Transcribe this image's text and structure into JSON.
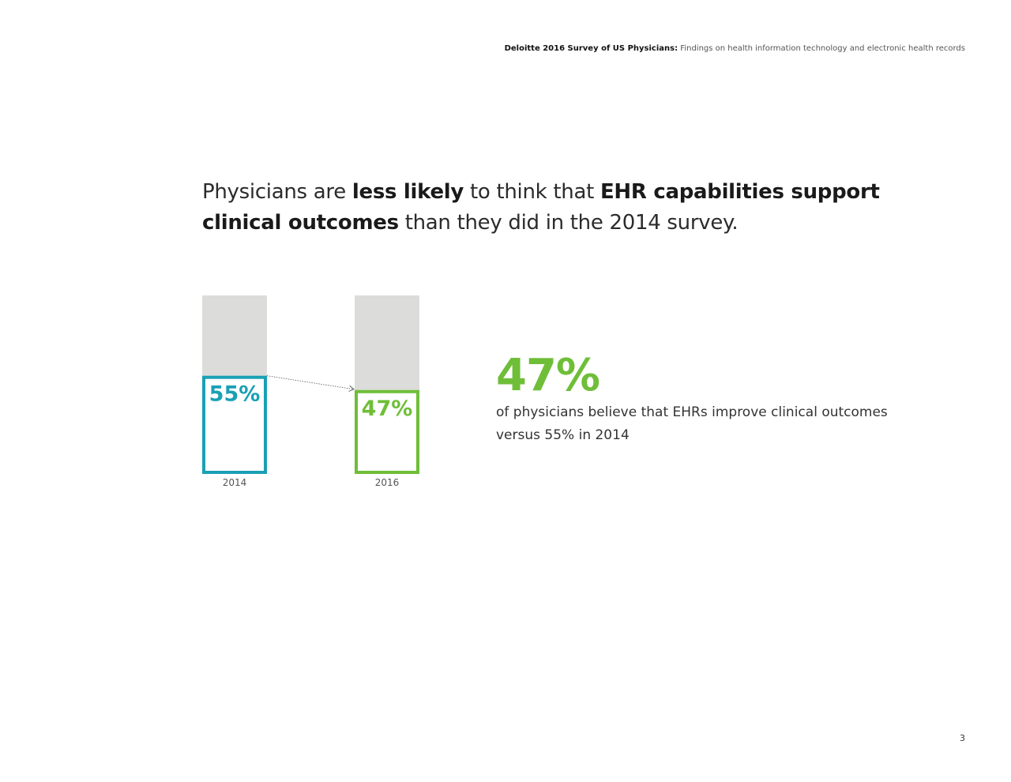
{
  "header": {
    "bold": "Deloitte 2016 Survey of US Physicians:",
    "rest": "Findings on health information technology and electronic health records"
  },
  "headline": {
    "p1": "Physicians are ",
    "b1": "less likely",
    "p2": " to think that ",
    "b2": "EHR capabilities support clinical outcomes",
    "p3": " than they did in the 2014 survey."
  },
  "chart_data": {
    "type": "bar",
    "categories": [
      "2014",
      "2016"
    ],
    "values": [
      55,
      47
    ],
    "value_labels": [
      "55%",
      "47%"
    ],
    "ylim": [
      0,
      100
    ],
    "colors": [
      "#1aa0b4",
      "#6fbe38"
    ],
    "track_color": "#dcdcda",
    "grid": false,
    "annotation": "dotted arrow from 2014 bar to 2016 bar"
  },
  "callout": {
    "value": "47%",
    "text": "of physicians believe that EHRs improve clinical outcomes versus 55% in 2014",
    "color": "#6fbe38"
  },
  "page_number": "3"
}
